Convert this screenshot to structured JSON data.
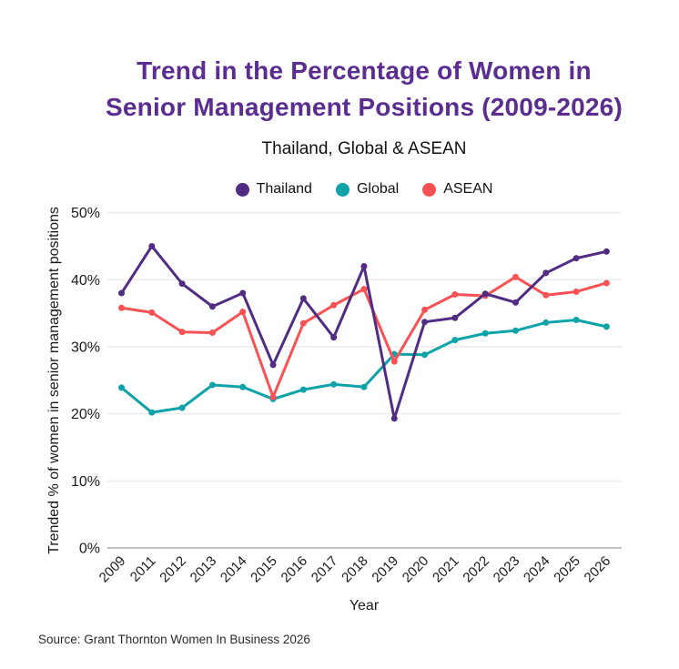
{
  "header": {
    "title_line1": "Trend in the Percentage of Women in",
    "title_line2": "Senior Management Positions (2009-2026)",
    "subtitle": "Thailand, Global & ASEAN"
  },
  "legend": [
    {
      "label": "Thailand",
      "color": "#502D82"
    },
    {
      "label": "Global",
      "color": "#0DA3A8"
    },
    {
      "label": "ASEAN",
      "color": "#FA5254"
    }
  ],
  "colors": {
    "title": "#5B2D91",
    "grid": "#ECECEC",
    "axis_line": "#C2C2C2",
    "text": "#1A1A1A"
  },
  "source": "Source: Grant Thornton Women In Business 2026",
  "chart_data": {
    "type": "line",
    "title": "Trend in the Percentage of Women in Senior Management Positions (2009-2026)",
    "subtitle": "Thailand, Global & ASEAN",
    "x": [
      "2009",
      "2011",
      "2012",
      "2013",
      "2014",
      "2015",
      "2016",
      "2017",
      "2018",
      "2019",
      "2020",
      "2021",
      "2022",
      "2023",
      "2024",
      "2025",
      "2026"
    ],
    "series": [
      {
        "name": "Thailand",
        "color": "#502D82",
        "values": [
          38,
          45,
          39.4,
          36,
          38,
          27.3,
          37.2,
          31.4,
          42,
          19.3,
          33.7,
          34.3,
          37.9,
          36.6,
          41,
          43.2,
          44.2
        ]
      },
      {
        "name": "Global",
        "color": "#0DA3A8",
        "values": [
          23.9,
          20.2,
          20.9,
          24.3,
          24,
          22.2,
          23.6,
          24.4,
          24,
          28.9,
          28.8,
          31,
          32,
          32.4,
          33.6,
          34,
          33
        ]
      },
      {
        "name": "ASEAN",
        "color": "#FA5254",
        "values": [
          35.8,
          35.1,
          32.2,
          32.1,
          35.2,
          22.5,
          33.5,
          36.2,
          38.6,
          27.8,
          35.5,
          37.8,
          37.6,
          40.4,
          37.7,
          38.2,
          39.5
        ]
      }
    ],
    "xlabel": "Year",
    "ylabel": "Trended % of women in senior management positions",
    "ylim": [
      0,
      50
    ],
    "yticks": [
      0,
      10,
      20,
      30,
      40,
      50
    ],
    "ytick_format": "percent",
    "grid": "horizontal",
    "legend_position": "top",
    "marker": "circle"
  }
}
